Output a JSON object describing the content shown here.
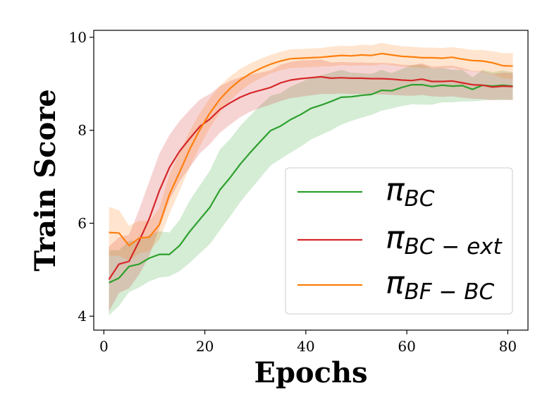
{
  "chart_data": {
    "type": "line",
    "title": "",
    "xlabel": "Epochs",
    "ylabel": "Train Score",
    "xlim": [
      -2,
      84
    ],
    "ylim": [
      3.7,
      10.15
    ],
    "xticks": [
      0,
      20,
      40,
      60,
      80
    ],
    "yticks": [
      4,
      6,
      8,
      10
    ],
    "grid": false,
    "legend_position": "center-right",
    "x": [
      1,
      3,
      5,
      7,
      9,
      11,
      13,
      15,
      17,
      19,
      21,
      23,
      25,
      27,
      29,
      31,
      33,
      35,
      37,
      39,
      41,
      43,
      45,
      47,
      49,
      51,
      53,
      55,
      57,
      59,
      61,
      63,
      65,
      67,
      69,
      71,
      73,
      75,
      77,
      79,
      81
    ],
    "series": [
      {
        "name": "π_BC",
        "legend": {
          "symbol": "π",
          "subscript": "BC"
        },
        "color": "#2ca02c",
        "values": [
          4.72,
          4.82,
          5.07,
          5.12,
          5.25,
          5.33,
          5.33,
          5.52,
          5.82,
          6.08,
          6.34,
          6.72,
          6.98,
          7.27,
          7.52,
          7.76,
          7.99,
          8.09,
          8.23,
          8.34,
          8.47,
          8.54,
          8.62,
          8.71,
          8.72,
          8.75,
          8.77,
          8.86,
          8.85,
          8.92,
          8.98,
          8.98,
          8.94,
          8.97,
          8.95,
          8.96,
          8.88,
          8.97,
          8.95,
          8.97,
          8.95
        ],
        "lower": [
          4.02,
          4.22,
          4.52,
          4.62,
          4.75,
          4.83,
          4.86,
          4.97,
          5.15,
          5.35,
          5.55,
          5.85,
          6.15,
          6.45,
          6.72,
          6.98,
          7.24,
          7.38,
          7.52,
          7.65,
          7.8,
          7.9,
          8.0,
          8.12,
          8.2,
          8.27,
          8.33,
          8.42,
          8.47,
          8.52,
          8.56,
          8.55,
          8.55,
          8.6,
          8.6,
          8.62,
          8.62,
          8.64,
          8.65,
          8.65,
          8.65
        ],
        "upper": [
          5.42,
          5.42,
          5.62,
          5.62,
          5.75,
          5.83,
          5.8,
          6.07,
          6.49,
          6.81,
          7.13,
          7.59,
          7.81,
          8.09,
          8.32,
          8.54,
          8.74,
          8.8,
          8.94,
          9.03,
          9.14,
          9.18,
          9.24,
          9.3,
          9.24,
          9.23,
          9.21,
          9.3,
          9.23,
          9.32,
          9.4,
          9.41,
          9.33,
          9.34,
          9.3,
          9.3,
          9.14,
          9.3,
          9.25,
          9.29,
          9.25
        ]
      },
      {
        "name": "π_BC−ext",
        "legend": {
          "symbol": "π",
          "subscript": "BC − ext"
        },
        "color": "#d62728",
        "values": [
          4.79,
          5.12,
          5.18,
          5.62,
          6.1,
          6.7,
          7.2,
          7.55,
          7.82,
          8.08,
          8.24,
          8.45,
          8.59,
          8.71,
          8.8,
          8.86,
          8.92,
          9.02,
          9.08,
          9.11,
          9.13,
          9.15,
          9.12,
          9.13,
          9.12,
          9.12,
          9.11,
          9.11,
          9.1,
          9.08,
          9.07,
          9.1,
          9.05,
          9.05,
          9.06,
          9.02,
          8.98,
          8.97,
          8.93,
          8.95,
          8.94
        ],
        "lower": [
          4.1,
          4.5,
          4.6,
          4.9,
          5.3,
          5.9,
          6.5,
          6.9,
          7.2,
          7.5,
          7.7,
          7.95,
          8.12,
          8.28,
          8.4,
          8.48,
          8.55,
          8.63,
          8.69,
          8.72,
          8.75,
          8.78,
          8.78,
          8.79,
          8.78,
          8.78,
          8.77,
          8.77,
          8.76,
          8.75,
          8.74,
          8.76,
          8.73,
          8.72,
          8.73,
          8.7,
          8.68,
          8.67,
          8.65,
          8.66,
          8.65
        ],
        "upper": [
          5.5,
          5.7,
          5.75,
          6.3,
          6.9,
          7.5,
          7.9,
          8.2,
          8.44,
          8.66,
          8.78,
          8.95,
          9.06,
          9.14,
          9.2,
          9.24,
          9.29,
          9.41,
          9.47,
          9.5,
          9.51,
          9.52,
          9.46,
          9.47,
          9.46,
          9.46,
          9.45,
          9.45,
          9.44,
          9.41,
          9.4,
          9.44,
          9.37,
          9.38,
          9.39,
          9.34,
          9.28,
          9.27,
          9.21,
          9.24,
          9.23
        ]
      },
      {
        "name": "π_BF−BC",
        "legend": {
          "symbol": "π",
          "subscript": "BF − BC"
        },
        "color": "#ff7f0e",
        "values": [
          5.8,
          5.79,
          5.52,
          5.68,
          5.7,
          5.97,
          6.62,
          7.1,
          7.59,
          8.01,
          8.37,
          8.67,
          8.9,
          9.08,
          9.22,
          9.33,
          9.42,
          9.49,
          9.54,
          9.55,
          9.56,
          9.57,
          9.59,
          9.61,
          9.6,
          9.62,
          9.61,
          9.65,
          9.62,
          9.59,
          9.58,
          9.56,
          9.56,
          9.55,
          9.57,
          9.53,
          9.5,
          9.49,
          9.45,
          9.39,
          9.38
        ],
        "lower": [
          5.3,
          5.3,
          5.2,
          5.35,
          5.4,
          5.65,
          6.2,
          6.7,
          7.2,
          7.65,
          8.05,
          8.38,
          8.64,
          8.84,
          9.0,
          9.12,
          9.22,
          9.29,
          9.34,
          9.35,
          9.36,
          9.37,
          9.38,
          9.4,
          9.39,
          9.4,
          9.39,
          9.42,
          9.4,
          9.37,
          9.36,
          9.34,
          9.34,
          9.33,
          9.35,
          9.3,
          9.27,
          9.25,
          9.2,
          9.12,
          9.1
        ],
        "upper": [
          6.35,
          6.28,
          5.95,
          6.05,
          6.05,
          6.32,
          7.05,
          7.52,
          7.98,
          8.37,
          8.69,
          8.96,
          9.16,
          9.32,
          9.44,
          9.54,
          9.62,
          9.69,
          9.74,
          9.75,
          9.76,
          9.77,
          9.8,
          9.82,
          9.81,
          9.84,
          9.83,
          9.88,
          9.84,
          9.81,
          9.8,
          9.78,
          9.78,
          9.77,
          9.79,
          9.76,
          9.73,
          9.73,
          9.7,
          9.66,
          9.66
        ]
      }
    ]
  }
}
